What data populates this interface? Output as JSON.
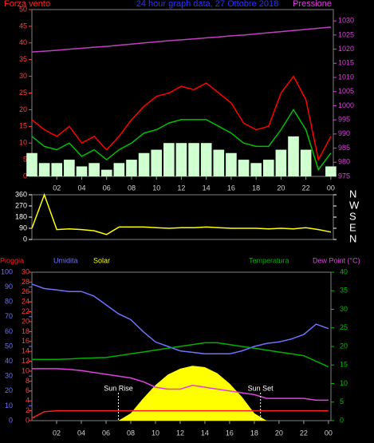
{
  "chart_data": [
    {
      "type": "line",
      "title": "24 hour graph data, 27 Ottobre 2018",
      "y_label": "Forza vento",
      "y2_label": "Pressione",
      "x": [
        0,
        1,
        2,
        3,
        4,
        5,
        6,
        7,
        8,
        9,
        10,
        11,
        12,
        13,
        14,
        15,
        16,
        17,
        18,
        19,
        20,
        21,
        22,
        23,
        24
      ],
      "xlim": [
        0,
        24.2
      ],
      "xticks": [
        {
          "value": 2,
          "label": "02"
        },
        {
          "value": 4,
          "label": "04"
        },
        {
          "value": 6,
          "label": "06"
        },
        {
          "value": 8,
          "label": "08"
        },
        10,
        12,
        14,
        16,
        18,
        20,
        22,
        {
          "value": 24,
          "label": "00"
        }
      ],
      "ylim": [
        0,
        50
      ],
      "yticks": [
        0,
        5,
        10,
        15,
        20,
        25,
        30,
        35,
        40,
        45,
        50
      ],
      "ytick_color": "#ff4040",
      "y2lim": [
        975,
        1034
      ],
      "y2ticks": [
        975,
        980,
        985,
        990,
        995,
        1000,
        1005,
        1010,
        1015,
        1020,
        1025,
        1030
      ],
      "y2tick_color": "#e040e0",
      "series": [
        {
          "kind": "line",
          "color": "#ff0000",
          "values": [
            17,
            14,
            12,
            15,
            10,
            12,
            8,
            12,
            17,
            21,
            24,
            25,
            27,
            26,
            28,
            25,
            22,
            16,
            14,
            15,
            25,
            30,
            23,
            5,
            12
          ]
        },
        {
          "kind": "bar",
          "color": "#d0ffd0",
          "values": [
            7,
            4,
            4,
            5,
            3,
            4,
            2,
            4,
            5,
            7,
            8,
            10,
            10,
            10,
            10,
            8,
            7,
            5,
            4,
            5,
            8,
            12,
            8,
            0,
            3
          ]
        },
        {
          "kind": "line",
          "color": "#00c000",
          "values": [
            12,
            9,
            8,
            10,
            6,
            8,
            5,
            8,
            10,
            13,
            14,
            16,
            17,
            17,
            17,
            15,
            13,
            10,
            9,
            9,
            14,
            20,
            14,
            2,
            7
          ]
        },
        {
          "kind": "line",
          "color": "#c040c0",
          "axis": "y2",
          "values": [
            1019,
            1019.3,
            1019.6,
            1020,
            1020.3,
            1020.7,
            1021,
            1021.4,
            1021.8,
            1022.2,
            1022.6,
            1023,
            1023.3,
            1023.6,
            1024,
            1024.3,
            1024.7,
            1025,
            1025.4,
            1025.8,
            1026.2,
            1026.6,
            1027,
            1027.4,
            1027.8
          ]
        }
      ]
    },
    {
      "type": "line",
      "x": [
        0,
        1,
        2,
        3,
        4,
        5,
        6,
        7,
        8,
        9,
        10,
        11,
        12,
        13,
        14,
        15,
        16,
        17,
        18,
        19,
        20,
        21,
        22,
        23,
        24
      ],
      "xlim": [
        0,
        24.2
      ],
      "ylim": [
        0,
        360
      ],
      "yticks": [
        0,
        90,
        180,
        270,
        360
      ],
      "ytick_color": "#ffffff",
      "y2lim": [
        0,
        360
      ],
      "y2ticks": [
        {
          "value": 0,
          "label": "N"
        },
        {
          "value": 90,
          "label": "E"
        },
        {
          "value": 180,
          "label": "S"
        },
        {
          "value": 270,
          "label": "W"
        },
        {
          "value": 360,
          "label": "N"
        }
      ],
      "y2tick_color": "#ffffff",
      "series": [
        {
          "kind": "line",
          "color": "#ffff00",
          "values": [
            90,
            360,
            80,
            85,
            80,
            70,
            40,
            100,
            100,
            100,
            95,
            90,
            95,
            95,
            100,
            95,
            90,
            90,
            90,
            85,
            90,
            85,
            95,
            80,
            60
          ]
        }
      ]
    },
    {
      "type": "line",
      "x": [
        0,
        1,
        2,
        3,
        4,
        5,
        6,
        7,
        8,
        9,
        10,
        11,
        12,
        13,
        14,
        15,
        16,
        17,
        18,
        19,
        20,
        21,
        22,
        23,
        24
      ],
      "xlim": [
        0,
        24.2
      ],
      "xticks": [
        {
          "value": 2,
          "label": "02"
        },
        {
          "value": 4,
          "label": "04"
        },
        {
          "value": 6,
          "label": "06"
        },
        {
          "value": 8,
          "label": "08"
        },
        10,
        12,
        14,
        16,
        18,
        20,
        22,
        {
          "value": 24,
          "label": "00"
        }
      ],
      "ylim": [
        0,
        100
      ],
      "yticks": [
        0,
        10,
        20,
        30,
        40,
        50,
        60,
        70,
        80,
        90,
        100
      ],
      "ytick_color": "#7070ff",
      "y2lim": [
        0,
        30
      ],
      "y2ticks": [
        0,
        2,
        4,
        6,
        8,
        10,
        12,
        14,
        16,
        18,
        20,
        22,
        24,
        26,
        28,
        30
      ],
      "y2tick_color": "#ff4040",
      "y3lim": [
        0,
        40
      ],
      "y3ticks": [
        0,
        5,
        10,
        15,
        20,
        25,
        30,
        35,
        40
      ],
      "y3tick_color": "#00c000",
      "series": [
        {
          "name": "Pioggia",
          "kind": "line",
          "axis": "y2",
          "color": "#ff2020",
          "values": [
            0.5,
            1.8,
            2,
            2,
            2,
            2,
            2,
            2,
            2,
            2,
            2,
            2,
            2,
            2,
            2,
            2,
            2,
            2,
            2,
            2,
            2,
            2,
            2,
            2,
            2
          ]
        },
        {
          "name": "Umidita",
          "kind": "line",
          "color": "#7070ff",
          "values": [
            92,
            89,
            88,
            87,
            87,
            84,
            78,
            72,
            68,
            60,
            53,
            50,
            47,
            46,
            45,
            45,
            45,
            47,
            50,
            52,
            53,
            55,
            58,
            65,
            62
          ]
        },
        {
          "name": "Solar",
          "kind": "area",
          "color": "#ffff00",
          "values": [
            0,
            0,
            0,
            0,
            0,
            0,
            0,
            0,
            5,
            15,
            24,
            31,
            35,
            37,
            36,
            32,
            25,
            16,
            5,
            0,
            0,
            0,
            0,
            0,
            0
          ]
        },
        {
          "name": "Temperatura",
          "kind": "line",
          "axis": "y3",
          "color": "#00b000",
          "values": [
            16.5,
            16.5,
            16.5,
            16.6,
            16.8,
            16.9,
            17,
            17.5,
            18,
            18.5,
            19,
            19.5,
            20,
            20.5,
            21,
            21,
            20.5,
            20,
            19.5,
            19,
            18.5,
            18,
            17.5,
            16,
            14.5
          ]
        },
        {
          "name": "Dew Point (°C)",
          "kind": "line",
          "axis": "y3",
          "color": "#e040e0",
          "values": [
            14,
            14,
            14,
            13.8,
            13.5,
            13,
            12.5,
            12,
            11.5,
            10.5,
            9,
            8.5,
            8.5,
            9.5,
            9,
            8.5,
            8,
            7.5,
            7,
            6,
            6,
            6,
            6,
            5.5,
            5.5
          ]
        }
      ],
      "annotations": [
        {
          "text": "Sun Rise",
          "x": 7
        },
        {
          "text": "Sun Set",
          "x": 18.5
        }
      ]
    }
  ]
}
